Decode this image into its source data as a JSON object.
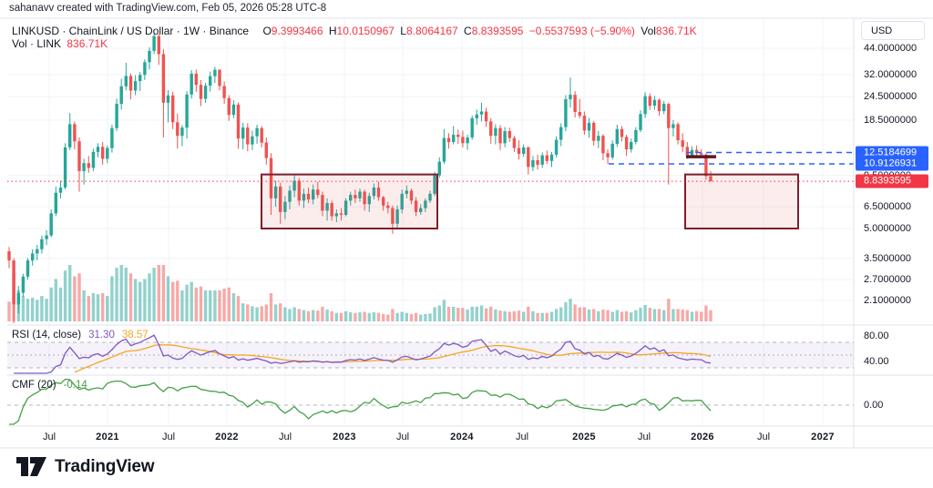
{
  "watermark": "sahanavv created with TradingView.com, Feb 05, 2026 05:28 UTC-8",
  "legend": {
    "title": "LINKUSD · ChainLink / US Dollar · 1W · Binance",
    "o_label": "O",
    "open": "9.3993466",
    "h_label": "H",
    "high": "10.0150967",
    "l_label": "L",
    "low": "8.8064167",
    "c_label": "C",
    "close": "8.8393595",
    "change": "−0.5537593 (−5.90%)",
    "vol_label": "Vol",
    "volume": "836.71K",
    "vol_row_title": "Vol · LINK",
    "vol_row_value": "836.71K"
  },
  "price_scale": {
    "currency": "USD",
    "ticks": [
      {
        "label": "44.0000000",
        "price": 44.0
      },
      {
        "label": "32.0000000",
        "price": 32.0
      },
      {
        "label": "24.5000000",
        "price": 24.5
      },
      {
        "label": "18.5000000",
        "price": 18.5
      },
      {
        "label": "9.5000000",
        "price": 9.5
      },
      {
        "label": "6.5000000",
        "price": 6.5
      },
      {
        "label": "5.0000000",
        "price": 5.0
      },
      {
        "label": "3.5000000",
        "price": 3.5
      },
      {
        "label": "2.7000000",
        "price": 2.7
      },
      {
        "label": "2.1000000",
        "price": 2.1
      }
    ],
    "price_tags": [
      {
        "label": "12.5184699",
        "price": 12.5184699,
        "bg": "#2962ff"
      },
      {
        "label": "10.9126931",
        "price": 10.9126931,
        "bg": "#2962ff"
      },
      {
        "label": "8.8393595",
        "price": 8.8393595,
        "bg": "#f23645"
      }
    ]
  },
  "time_scale": {
    "labels": [
      {
        "text": "Jul",
        "x": 54,
        "bold": false
      },
      {
        "text": "2021",
        "x": 118,
        "bold": true
      },
      {
        "text": "Jul",
        "x": 185,
        "bold": false
      },
      {
        "text": "2022",
        "x": 249,
        "bold": true
      },
      {
        "text": "Jul",
        "x": 313,
        "bold": false
      },
      {
        "text": "2023",
        "x": 378,
        "bold": true
      },
      {
        "text": "Jul",
        "x": 442,
        "bold": false
      },
      {
        "text": "2024",
        "x": 507,
        "bold": true
      },
      {
        "text": "Jul",
        "x": 573,
        "bold": false
      },
      {
        "text": "2025",
        "x": 641,
        "bold": true
      },
      {
        "text": "Jul",
        "x": 707,
        "bold": false
      },
      {
        "text": "2026",
        "x": 771,
        "bold": true
      },
      {
        "text": "Jul",
        "x": 838,
        "bold": false
      },
      {
        "text": "2027",
        "x": 903,
        "bold": true
      }
    ]
  },
  "panes": {
    "rsi": {
      "title": "RSI (14, close)",
      "value": "31.30",
      "ma_value": "38.57",
      "axis_ticks": [
        {
          "label": "80.00",
          "value": 80
        },
        {
          "label": "40.00",
          "value": 40
        }
      ],
      "band_levels": [
        70,
        50,
        30
      ]
    },
    "cmf": {
      "title": "CMF (20)",
      "value": "-0.14",
      "axis_ticks": [
        {
          "label": "0.00",
          "value": 0
        }
      ]
    }
  },
  "footer": {
    "brand": "TradingView"
  },
  "colors": {
    "up": "#26a69a",
    "down": "#ef5350",
    "vol_up": "rgba(38,166,154,0.5)",
    "vol_down": "rgba(239,83,80,0.5)",
    "accent_blue": "#2962ff",
    "accent_red": "#f23645",
    "box_fill": "rgba(229,77,77,0.10)",
    "box_border": "#7e1f2e",
    "maroon_line": "#5e1722",
    "rsi_line": "#7e57c2",
    "rsi_ma": "#f5a623",
    "rsi_band": "rgba(126,87,194,0.08)",
    "cmf_line": "#43a047",
    "grid": "#f0f3fa",
    "separator": "#e0e3eb",
    "band_dash": "rgba(120,123,134,0.55)"
  },
  "chart_data": {
    "type": "candlestick",
    "title": "LINKUSD · ChainLink / US Dollar · 1W · Binance",
    "symbol": "LINKUSD",
    "interval": "1W",
    "exchange": "Binance",
    "scale": "log",
    "y_axis_currency": "USD",
    "x_range": "Feb 2020 – Jan 2027 (data through Feb 2026)",
    "note": "candles are [open, high, low, close, relative_volume], ~2-week resolution",
    "candles": [
      [
        3.8,
        4.0,
        3.1,
        3.4,
        0.35
      ],
      [
        3.4,
        3.5,
        1.6,
        2.0,
        0.85
      ],
      [
        2.0,
        2.5,
        1.8,
        2.3,
        0.55
      ],
      [
        2.3,
        2.9,
        2.2,
        2.8,
        0.45
      ],
      [
        2.8,
        3.5,
        2.7,
        3.4,
        0.4
      ],
      [
        3.4,
        3.9,
        3.2,
        3.7,
        0.42
      ],
      [
        3.7,
        4.1,
        3.4,
        3.9,
        0.38
      ],
      [
        3.9,
        4.6,
        3.7,
        4.4,
        0.45
      ],
      [
        4.4,
        4.9,
        4.1,
        4.6,
        0.4
      ],
      [
        4.6,
        6.3,
        4.5,
        6.0,
        0.6
      ],
      [
        6.0,
        8.3,
        5.8,
        7.7,
        0.75
      ],
      [
        7.7,
        8.9,
        7.2,
        8.2,
        0.6
      ],
      [
        8.2,
        14.0,
        8.0,
        13.3,
        0.9
      ],
      [
        13.3,
        20.1,
        12.9,
        17.6,
        1.0
      ],
      [
        17.6,
        18.2,
        13.0,
        14.3,
        0.8
      ],
      [
        14.3,
        15.0,
        7.8,
        10.0,
        0.85
      ],
      [
        10.0,
        11.6,
        8.5,
        11.0,
        0.55
      ],
      [
        11.0,
        12.0,
        9.8,
        10.4,
        0.45
      ],
      [
        10.4,
        13.1,
        10.0,
        12.6,
        0.5
      ],
      [
        12.6,
        14.0,
        11.8,
        13.4,
        0.48
      ],
      [
        13.4,
        14.2,
        10.8,
        11.6,
        0.5
      ],
      [
        11.6,
        13.6,
        11.0,
        13.2,
        0.45
      ],
      [
        13.2,
        17.5,
        12.5,
        16.8,
        0.8
      ],
      [
        16.8,
        24.0,
        16.2,
        22.5,
        0.95
      ],
      [
        22.5,
        30.5,
        21.0,
        27.8,
        1.0
      ],
      [
        27.8,
        36.9,
        26.5,
        31.5,
        0.95
      ],
      [
        31.5,
        32.5,
        23.8,
        26.4,
        0.85
      ],
      [
        26.4,
        31.8,
        25.0,
        29.6,
        0.75
      ],
      [
        29.6,
        33.0,
        26.2,
        31.9,
        0.7
      ],
      [
        31.9,
        38.5,
        30.0,
        37.2,
        0.75
      ],
      [
        37.2,
        44.5,
        34.1,
        42.6,
        0.85
      ],
      [
        42.6,
        52.9,
        41.0,
        50.9,
        0.95
      ],
      [
        50.9,
        52.2,
        36.0,
        41.0,
        1.0
      ],
      [
        41.0,
        43.5,
        15.0,
        22.8,
        1.0
      ],
      [
        22.8,
        26.5,
        18.0,
        24.9,
        0.8
      ],
      [
        24.9,
        26.0,
        16.6,
        18.0,
        0.7
      ],
      [
        18.0,
        20.0,
        13.1,
        15.3,
        0.72
      ],
      [
        15.3,
        17.4,
        13.5,
        16.9,
        0.55
      ],
      [
        16.9,
        26.2,
        14.8,
        25.2,
        0.65
      ],
      [
        25.2,
        33.8,
        24.0,
        32.4,
        0.7
      ],
      [
        32.4,
        34.0,
        26.0,
        28.3,
        0.6
      ],
      [
        28.3,
        30.0,
        21.9,
        23.9,
        0.62
      ],
      [
        23.9,
        29.0,
        22.8,
        28.0,
        0.55
      ],
      [
        28.0,
        33.2,
        26.1,
        31.4,
        0.55
      ],
      [
        31.4,
        35.2,
        29.0,
        33.9,
        0.55
      ],
      [
        33.9,
        34.2,
        26.5,
        27.9,
        0.55
      ],
      [
        27.9,
        29.5,
        22.5,
        24.1,
        0.58
      ],
      [
        24.1,
        25.0,
        18.3,
        19.7,
        0.6
      ],
      [
        19.7,
        23.5,
        18.9,
        22.3,
        0.5
      ],
      [
        22.3,
        22.9,
        13.1,
        14.8,
        0.45
      ],
      [
        14.8,
        17.9,
        13.0,
        16.9,
        0.32
      ],
      [
        16.9,
        17.8,
        12.7,
        13.8,
        0.3
      ],
      [
        13.8,
        16.3,
        12.9,
        15.2,
        0.27
      ],
      [
        15.2,
        17.5,
        13.9,
        16.8,
        0.25
      ],
      [
        16.8,
        17.2,
        13.3,
        14.1,
        0.27
      ],
      [
        14.1,
        15.0,
        10.8,
        11.7,
        0.3
      ],
      [
        11.7,
        12.4,
        5.9,
        7.2,
        0.5
      ],
      [
        7.2,
        8.9,
        6.5,
        8.3,
        0.3
      ],
      [
        8.3,
        8.7,
        5.3,
        6.1,
        0.32
      ],
      [
        6.1,
        7.4,
        5.6,
        6.9,
        0.25
      ],
      [
        6.9,
        8.4,
        6.3,
        7.9,
        0.22
      ],
      [
        7.9,
        9.5,
        7.3,
        8.9,
        0.25
      ],
      [
        8.9,
        9.2,
        6.6,
        7.0,
        0.22
      ],
      [
        7.0,
        8.1,
        6.4,
        7.6,
        0.2
      ],
      [
        7.6,
        8.2,
        6.8,
        7.1,
        0.18
      ],
      [
        7.1,
        8.5,
        6.7,
        8.0,
        0.2
      ],
      [
        8.0,
        8.8,
        7.2,
        7.5,
        0.19
      ],
      [
        7.5,
        7.8,
        5.8,
        6.2,
        0.26
      ],
      [
        6.2,
        7.2,
        5.5,
        6.8,
        0.21
      ],
      [
        6.8,
        7.0,
        5.5,
        5.8,
        0.18
      ],
      [
        5.8,
        6.3,
        5.4,
        6.0,
        0.15
      ],
      [
        6.0,
        6.4,
        5.5,
        5.9,
        0.15
      ],
      [
        5.9,
        7.2,
        5.8,
        7.0,
        0.18
      ],
      [
        7.0,
        7.8,
        6.6,
        7.5,
        0.16
      ],
      [
        7.5,
        8.0,
        6.8,
        7.2,
        0.15
      ],
      [
        7.2,
        8.1,
        6.9,
        7.8,
        0.16
      ],
      [
        7.8,
        8.0,
        6.2,
        6.7,
        0.17
      ],
      [
        6.7,
        7.7,
        6.1,
        7.4,
        0.15
      ],
      [
        7.4,
        8.6,
        7.1,
        8.2,
        0.16
      ],
      [
        8.2,
        8.8,
        7.0,
        7.3,
        0.15
      ],
      [
        7.3,
        7.4,
        6.2,
        6.6,
        0.13
      ],
      [
        6.6,
        6.9,
        6.0,
        6.4,
        0.12
      ],
      [
        6.4,
        6.6,
        4.7,
        5.3,
        0.22
      ],
      [
        5.3,
        6.6,
        5.0,
        6.3,
        0.15
      ],
      [
        6.3,
        8.0,
        6.0,
        7.6,
        0.17
      ],
      [
        7.6,
        8.4,
        7.2,
        7.9,
        0.15
      ],
      [
        7.9,
        8.1,
        6.7,
        7.0,
        0.13
      ],
      [
        7.0,
        7.3,
        5.8,
        6.1,
        0.15
      ],
      [
        6.1,
        6.7,
        5.9,
        6.4,
        0.12
      ],
      [
        6.4,
        7.2,
        6.1,
        7.0,
        0.13
      ],
      [
        7.0,
        7.9,
        6.8,
        7.6,
        0.14
      ],
      [
        7.6,
        9.9,
        7.4,
        9.5,
        0.25
      ],
      [
        9.5,
        11.8,
        9.2,
        11.2,
        0.28
      ],
      [
        11.2,
        16.6,
        10.9,
        14.9,
        0.38
      ],
      [
        14.9,
        15.8,
        13.1,
        14.2,
        0.26
      ],
      [
        14.2,
        17.2,
        13.8,
        15.5,
        0.26
      ],
      [
        15.5,
        16.5,
        13.9,
        15.1,
        0.24
      ],
      [
        15.1,
        16.3,
        13.3,
        14.0,
        0.24
      ],
      [
        14.0,
        15.5,
        12.9,
        15.0,
        0.21
      ],
      [
        15.0,
        19.5,
        14.6,
        18.9,
        0.26
      ],
      [
        18.9,
        21.0,
        17.5,
        19.8,
        0.26
      ],
      [
        19.8,
        22.8,
        18.2,
        20.5,
        0.28
      ],
      [
        20.5,
        21.5,
        17.0,
        18.2,
        0.23
      ],
      [
        18.2,
        19.0,
        13.9,
        15.3,
        0.26
      ],
      [
        15.3,
        17.6,
        13.8,
        16.8,
        0.21
      ],
      [
        16.8,
        17.4,
        12.9,
        14.0,
        0.19
      ],
      [
        14.0,
        17.0,
        13.3,
        16.2,
        0.18
      ],
      [
        16.2,
        16.9,
        14.2,
        14.9,
        0.17
      ],
      [
        14.9,
        15.3,
        12.6,
        13.2,
        0.18
      ],
      [
        13.2,
        14.5,
        11.5,
        12.3,
        0.19
      ],
      [
        12.3,
        13.8,
        11.9,
        13.3,
        0.17
      ],
      [
        13.3,
        13.5,
        9.6,
        10.5,
        0.26
      ],
      [
        10.5,
        12.0,
        10.0,
        11.4,
        0.18
      ],
      [
        11.4,
        12.2,
        10.2,
        10.8,
        0.15
      ],
      [
        10.8,
        12.5,
        10.4,
        12.1,
        0.15
      ],
      [
        12.1,
        12.8,
        10.9,
        11.3,
        0.15
      ],
      [
        11.3,
        12.6,
        10.5,
        12.2,
        0.17
      ],
      [
        12.2,
        15.2,
        11.8,
        14.6,
        0.22
      ],
      [
        14.6,
        17.8,
        13.5,
        17.0,
        0.25
      ],
      [
        17.0,
        25.0,
        16.2,
        23.8,
        0.34
      ],
      [
        23.8,
        30.9,
        21.5,
        25.1,
        0.4
      ],
      [
        25.1,
        26.2,
        19.1,
        20.4,
        0.3
      ],
      [
        20.4,
        23.9,
        18.9,
        19.5,
        0.25
      ],
      [
        19.5,
        20.5,
        15.5,
        16.3,
        0.25
      ],
      [
        16.3,
        19.0,
        15.0,
        17.9,
        0.21
      ],
      [
        17.9,
        18.3,
        13.6,
        14.4,
        0.22
      ],
      [
        14.4,
        16.2,
        13.2,
        15.3,
        0.18
      ],
      [
        15.3,
        15.6,
        11.4,
        12.4,
        0.21
      ],
      [
        12.4,
        13.0,
        10.9,
        11.8,
        0.2
      ],
      [
        11.8,
        14.5,
        11.5,
        13.9,
        0.17
      ],
      [
        13.9,
        17.5,
        13.4,
        16.6,
        0.2
      ],
      [
        16.6,
        17.2,
        14.3,
        15.1,
        0.17
      ],
      [
        15.1,
        15.5,
        12.0,
        13.0,
        0.18
      ],
      [
        13.0,
        14.8,
        12.5,
        14.2,
        0.16
      ],
      [
        14.2,
        17.0,
        13.8,
        16.4,
        0.2
      ],
      [
        16.4,
        20.8,
        16.0,
        19.9,
        0.24
      ],
      [
        19.9,
        25.9,
        19.0,
        24.7,
        0.29
      ],
      [
        24.7,
        25.5,
        20.9,
        22.0,
        0.24
      ],
      [
        22.0,
        24.8,
        21.0,
        23.6,
        0.22
      ],
      [
        23.6,
        24.0,
        19.5,
        20.6,
        0.22
      ],
      [
        20.6,
        23.3,
        19.9,
        22.5,
        0.2
      ],
      [
        22.5,
        22.8,
        8.5,
        16.8,
        0.4
      ],
      [
        16.8,
        18.5,
        15.2,
        17.6,
        0.22
      ],
      [
        17.6,
        18.0,
        13.8,
        14.5,
        0.22
      ],
      [
        14.5,
        15.8,
        12.6,
        13.4,
        0.21
      ],
      [
        13.4,
        14.2,
        11.6,
        12.1,
        0.2
      ],
      [
        12.1,
        13.5,
        11.8,
        12.9,
        0.17
      ],
      [
        12.9,
        13.6,
        11.9,
        12.4,
        0.18
      ],
      [
        12.4,
        13.0,
        11.7,
        12.2,
        0.17
      ],
      [
        12.2,
        12.4,
        9.0,
        9.4,
        0.28
      ],
      [
        9.4,
        10.02,
        8.81,
        8.84,
        0.2
      ]
    ],
    "overlays": {
      "boxes": [
        {
          "x1": 287,
          "x2": 480,
          "price_top": 9.6,
          "price_bottom": 5.0
        },
        {
          "x1": 752,
          "x2": 876,
          "price_top": 9.6,
          "price_bottom": 5.0
        }
      ],
      "hlines": [
        {
          "price": 12.5184699,
          "x1": 753,
          "x2": 937,
          "style": "dashed",
          "color": "#2962ff",
          "width": 1.5
        },
        {
          "price": 10.9126931,
          "x1": 668,
          "x2": 937,
          "style": "dashed",
          "color": "#2962ff",
          "width": 1.5
        },
        {
          "price": 8.8393595,
          "x1": 8,
          "x2": 937,
          "style": "dotted",
          "color": "#f23645",
          "width": 1
        },
        {
          "price": 11.9,
          "x1": 753,
          "x2": 786,
          "style": "solid",
          "color": "#5e1722",
          "width": 3.5
        }
      ]
    }
  }
}
